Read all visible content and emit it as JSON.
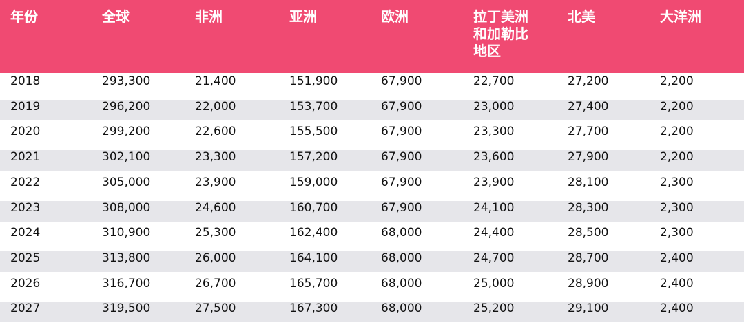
{
  "chart_data": {
    "type": "table",
    "columns": [
      "年份",
      "全球",
      "非洲",
      "亚洲",
      "欧洲",
      "拉丁美洲和加勒比地区",
      "北美",
      "大洋洲"
    ],
    "rows": [
      [
        "2018",
        "293,300",
        "21,400",
        "151,900",
        "67,900",
        "22,700",
        "27,200",
        "2,200"
      ],
      [
        "2019",
        "296,200",
        "22,000",
        "153,700",
        "67,900",
        "23,000",
        "27,400",
        "2,200"
      ],
      [
        "2020",
        "299,200",
        "22,600",
        "155,500",
        "67,900",
        "23,300",
        "27,700",
        "2,200"
      ],
      [
        "2021",
        "302,100",
        "23,300",
        "157,200",
        "67,900",
        "23,600",
        "27,900",
        "2,200"
      ],
      [
        "2022",
        "305,000",
        "23,900",
        "159,000",
        "67,900",
        "23,900",
        "28,100",
        "2,300"
      ],
      [
        "2023",
        "308,000",
        "24,600",
        "160,700",
        "67,900",
        "24,100",
        "28,300",
        "2,300"
      ],
      [
        "2024",
        "310,900",
        "25,300",
        "162,400",
        "68,000",
        "24,400",
        "28,500",
        "2,300"
      ],
      [
        "2025",
        "313,800",
        "26,000",
        "164,100",
        "68,000",
        "24,700",
        "28,700",
        "2,400"
      ],
      [
        "2026",
        "316,700",
        "26,700",
        "165,700",
        "68,000",
        "25,000",
        "28,900",
        "2,400"
      ],
      [
        "2027",
        "319,500",
        "27,500",
        "167,300",
        "68,000",
        "25,200",
        "29,100",
        "2,400"
      ]
    ]
  },
  "colors": {
    "header_bg": "#f04a72",
    "header_text": "#ffffff",
    "stripe": "#e6e6ea",
    "body_text": "#111111"
  }
}
